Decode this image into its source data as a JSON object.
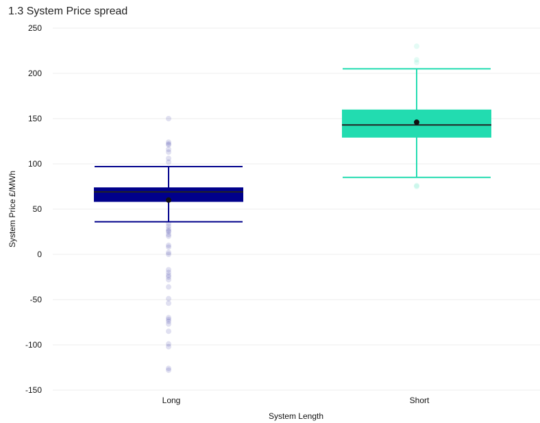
{
  "chart_data": {
    "type": "box",
    "title": "1.3 System Price spread",
    "xlabel": "System Length",
    "ylabel": "System Price £/MWh",
    "ylim": [
      -150,
      250
    ],
    "yticks": [
      250,
      200,
      150,
      100,
      50,
      0,
      -50,
      -100,
      -150
    ],
    "grid": true,
    "categories": [
      "Long",
      "Short"
    ],
    "series": [
      {
        "category": "Long",
        "color": "#00008b",
        "whisker_low": 36,
        "q1": 58,
        "median": 69,
        "q3": 74,
        "whisker_high": 97,
        "mean": 60,
        "outliers": [
          150,
          124,
          122,
          121,
          116,
          113,
          106,
          102,
          34,
          31,
          28,
          26,
          25,
          22,
          20,
          10,
          8,
          2,
          0,
          -17,
          -20,
          -23,
          -25,
          -28,
          -36,
          -49,
          -54,
          -70,
          -72,
          -74,
          -77,
          -85,
          -99,
          -102,
          -126,
          -128
        ]
      },
      {
        "category": "Short",
        "color": "#22dcb0",
        "whisker_low": 85,
        "q1": 129,
        "median": 143,
        "q3": 160,
        "whisker_high": 205,
        "mean": 146,
        "outliers": [
          230,
          215,
          212,
          76,
          75
        ]
      }
    ]
  }
}
